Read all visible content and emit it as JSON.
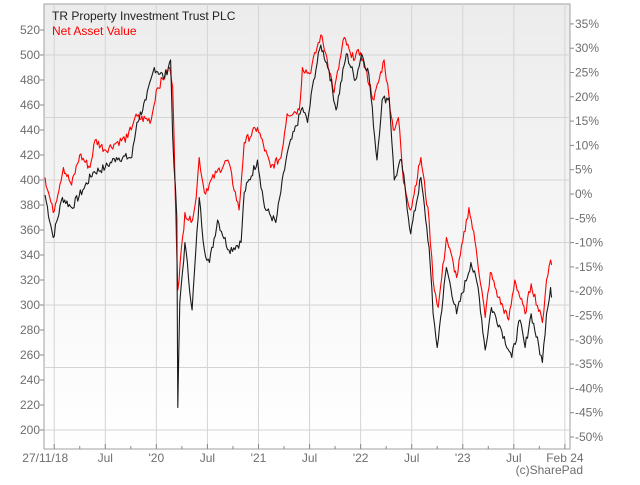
{
  "chart_data": {
    "type": "line",
    "title": "",
    "legend_position": "top-left",
    "y_left": {
      "range": [
        190,
        530
      ],
      "ticks": [
        200,
        220,
        240,
        260,
        280,
        300,
        320,
        340,
        360,
        380,
        400,
        420,
        440,
        460,
        480,
        500,
        520
      ]
    },
    "y_right": {
      "base_value": 388.8,
      "ticks": [
        -50,
        -45,
        -40,
        -35,
        -30,
        -25,
        -20,
        -15,
        -10,
        -5,
        0,
        5,
        10,
        15,
        20,
        25,
        30,
        35
      ],
      "unit": "%"
    },
    "x_range": [
      2018.9,
      2024.05
    ],
    "x_ticks": [
      {
        "x": 2019.0,
        "label": "27/11/18"
      },
      {
        "x": 2019.5,
        "label": "Jul"
      },
      {
        "x": 2020.0,
        "label": "'20"
      },
      {
        "x": 2020.5,
        "label": "Jul"
      },
      {
        "x": 2021.0,
        "label": "'21"
      },
      {
        "x": 2021.5,
        "label": "Jul"
      },
      {
        "x": 2022.0,
        "label": "'22"
      },
      {
        "x": 2022.5,
        "label": "Jul"
      },
      {
        "x": 2023.0,
        "label": "'23"
      },
      {
        "x": 2023.5,
        "label": "Jul"
      },
      {
        "x": 2024.0,
        "label": "Feb 24"
      }
    ],
    "grid": true,
    "series": [
      {
        "name": "TR Property Investment Trust PLC",
        "color": "#1a1a1a",
        "points": [
          [
            2018.91,
            388
          ],
          [
            2018.99,
            354
          ],
          [
            2019.08,
            386
          ],
          [
            2019.17,
            378
          ],
          [
            2019.28,
            392
          ],
          [
            2019.38,
            406
          ],
          [
            2019.5,
            410
          ],
          [
            2019.61,
            418
          ],
          [
            2019.76,
            418
          ],
          [
            2019.81,
            446
          ],
          [
            2019.9,
            464
          ],
          [
            2019.98,
            490
          ],
          [
            2020.08,
            482
          ],
          [
            2020.14,
            496
          ],
          [
            2020.16,
            434
          ],
          [
            2020.2,
            370
          ],
          [
            2020.21,
            218
          ],
          [
            2020.23,
            302
          ],
          [
            2020.28,
            350
          ],
          [
            2020.35,
            296
          ],
          [
            2020.42,
            386
          ],
          [
            2020.47,
            344
          ],
          [
            2020.52,
            334
          ],
          [
            2020.6,
            368
          ],
          [
            2020.71,
            344
          ],
          [
            2020.83,
            350
          ],
          [
            2020.86,
            390
          ],
          [
            2020.99,
            416
          ],
          [
            2021.06,
            378
          ],
          [
            2021.17,
            366
          ],
          [
            2021.28,
            421
          ],
          [
            2021.43,
            458
          ],
          [
            2021.48,
            446
          ],
          [
            2021.54,
            480
          ],
          [
            2021.61,
            508
          ],
          [
            2021.69,
            488
          ],
          [
            2021.76,
            456
          ],
          [
            2021.86,
            501
          ],
          [
            2021.95,
            480
          ],
          [
            2022.01,
            501
          ],
          [
            2022.08,
            485
          ],
          [
            2022.16,
            416
          ],
          [
            2022.21,
            464
          ],
          [
            2022.28,
            466
          ],
          [
            2022.33,
            400
          ],
          [
            2022.4,
            416
          ],
          [
            2022.49,
            357
          ],
          [
            2022.59,
            402
          ],
          [
            2022.67,
            346
          ],
          [
            2022.71,
            293
          ],
          [
            2022.75,
            266
          ],
          [
            2022.84,
            330
          ],
          [
            2022.94,
            293
          ],
          [
            2023.08,
            334
          ],
          [
            2023.15,
            314
          ],
          [
            2023.22,
            264
          ],
          [
            2023.28,
            298
          ],
          [
            2023.37,
            282
          ],
          [
            2023.48,
            258
          ],
          [
            2023.56,
            288
          ],
          [
            2023.61,
            266
          ],
          [
            2023.67,
            293
          ],
          [
            2023.78,
            254
          ],
          [
            2023.82,
            293
          ],
          [
            2023.86,
            314
          ],
          [
            2023.87,
            306
          ]
        ]
      },
      {
        "name": "Net Asset Value",
        "color": "#ff0000",
        "points": [
          [
            2018.91,
            402
          ],
          [
            2018.99,
            374
          ],
          [
            2019.09,
            410
          ],
          [
            2019.17,
            396
          ],
          [
            2019.25,
            420
          ],
          [
            2019.35,
            410
          ],
          [
            2019.4,
            432
          ],
          [
            2019.5,
            424
          ],
          [
            2019.61,
            430
          ],
          [
            2019.72,
            434
          ],
          [
            2019.79,
            450
          ],
          [
            2019.95,
            448
          ],
          [
            2020.0,
            472
          ],
          [
            2020.13,
            490
          ],
          [
            2020.16,
            474
          ],
          [
            2020.21,
            312
          ],
          [
            2020.28,
            374
          ],
          [
            2020.34,
            366
          ],
          [
            2020.39,
            386
          ],
          [
            2020.42,
            418
          ],
          [
            2020.47,
            390
          ],
          [
            2020.59,
            406
          ],
          [
            2020.7,
            416
          ],
          [
            2020.81,
            376
          ],
          [
            2020.86,
            430
          ],
          [
            2020.99,
            442
          ],
          [
            2021.12,
            410
          ],
          [
            2021.22,
            418
          ],
          [
            2021.28,
            453
          ],
          [
            2021.4,
            456
          ],
          [
            2021.43,
            490
          ],
          [
            2021.5,
            485
          ],
          [
            2021.61,
            516
          ],
          [
            2021.67,
            498
          ],
          [
            2021.74,
            470
          ],
          [
            2021.84,
            514
          ],
          [
            2021.91,
            498
          ],
          [
            2022.0,
            502
          ],
          [
            2022.13,
            464
          ],
          [
            2022.23,
            496
          ],
          [
            2022.32,
            440
          ],
          [
            2022.37,
            450
          ],
          [
            2022.42,
            398
          ],
          [
            2022.49,
            376
          ],
          [
            2022.59,
            418
          ],
          [
            2022.67,
            368
          ],
          [
            2022.71,
            320
          ],
          [
            2022.76,
            298
          ],
          [
            2022.84,
            354
          ],
          [
            2022.94,
            322
          ],
          [
            2023.06,
            378
          ],
          [
            2023.13,
            346
          ],
          [
            2023.22,
            290
          ],
          [
            2023.27,
            326
          ],
          [
            2023.35,
            306
          ],
          [
            2023.45,
            288
          ],
          [
            2023.51,
            320
          ],
          [
            2023.61,
            293
          ],
          [
            2023.67,
            317
          ],
          [
            2023.78,
            286
          ],
          [
            2023.82,
            320
          ],
          [
            2023.86,
            336
          ],
          [
            2023.87,
            332
          ]
        ]
      }
    ]
  },
  "legend": {
    "item1": "TR Property Investment Trust PLC",
    "item2": "Net Asset Value"
  },
  "credit": "(c)SharePad",
  "colors": {
    "price": "#1a1a1a",
    "nav": "#ff0000",
    "grid": "#d4d4d4",
    "axis_text": "#6e6e6e"
  }
}
